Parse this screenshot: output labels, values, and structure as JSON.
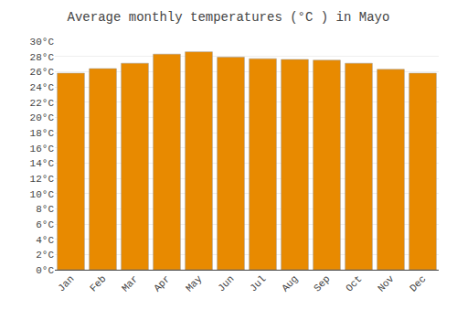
{
  "chart_data": {
    "type": "bar",
    "title": "Average monthly temperatures (°C ) in Mayo",
    "categories": [
      "Jan",
      "Feb",
      "Mar",
      "Apr",
      "May",
      "Jun",
      "Jul",
      "Aug",
      "Sep",
      "Oct",
      "Nov",
      "Dec"
    ],
    "values": [
      25.8,
      26.4,
      27.1,
      28.3,
      28.6,
      27.9,
      27.7,
      27.6,
      27.5,
      27.1,
      26.3,
      25.8
    ],
    "color": "#E88A00",
    "ylim": [
      0,
      30
    ],
    "yticks": [
      {
        "value": 0,
        "label": "0°C"
      },
      {
        "value": 2,
        "label": "2°C"
      },
      {
        "value": 4,
        "label": "4°C"
      },
      {
        "value": 6,
        "label": "6°C"
      },
      {
        "value": 8,
        "label": "8°C"
      },
      {
        "value": 10,
        "label": "10°C"
      },
      {
        "value": 12,
        "label": "12°C"
      },
      {
        "value": 14,
        "label": "14°C"
      },
      {
        "value": 16,
        "label": "16°C"
      },
      {
        "value": 18,
        "label": "18°C"
      },
      {
        "value": 20,
        "label": "20°C"
      },
      {
        "value": 22,
        "label": "22°C"
      },
      {
        "value": 24,
        "label": "24°C"
      },
      {
        "value": 26,
        "label": "26°C"
      },
      {
        "value": 28,
        "label": "28°C"
      },
      {
        "value": 30,
        "label": "30°C"
      }
    ],
    "grid": true
  }
}
